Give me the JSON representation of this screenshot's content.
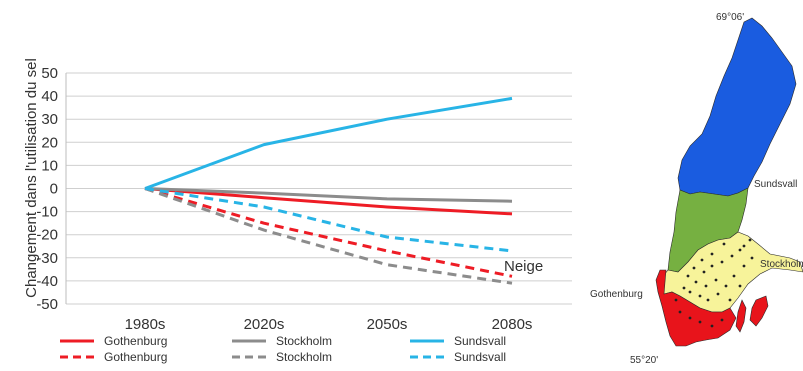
{
  "chart_data": {
    "type": "line",
    "title": "",
    "xlabel": "",
    "ylabel": "Changement dans l'utilisation du sel",
    "categories": [
      "1980s",
      "2020s",
      "2050s",
      "2080s"
    ],
    "ylim": [
      -50,
      50
    ],
    "yticks": [
      50,
      40,
      30,
      20,
      10,
      0,
      -10,
      -20,
      -30,
      -40,
      -50
    ],
    "grid": true,
    "series": [
      {
        "name": "Gothenburg",
        "values": [
          0,
          -4,
          -8,
          -11
        ],
        "color": "#ee1c25",
        "dash": "solid"
      },
      {
        "name": "Stockholm",
        "values": [
          0,
          -2,
          -4.5,
          -5.5
        ],
        "color": "#8c8c8c",
        "dash": "solid"
      },
      {
        "name": "Sundsvall",
        "values": [
          0,
          19,
          30,
          39
        ],
        "color": "#28b4e6",
        "dash": "solid"
      },
      {
        "name": "Gothenburg",
        "values": [
          0,
          -15,
          -27,
          -38
        ],
        "color": "#ee1c25",
        "dash": "dashed"
      },
      {
        "name": "Stockholm",
        "values": [
          0,
          -18,
          -33,
          -41
        ],
        "color": "#8c8c8c",
        "dash": "dashed"
      },
      {
        "name": "Sundsvall",
        "values": [
          0,
          -8,
          -21,
          -27
        ],
        "color": "#28b4e6",
        "dash": "dashed"
      }
    ],
    "annotations": [
      {
        "text": "Neige"
      }
    ],
    "legend": "bottom"
  },
  "map": {
    "lat_top": "69°06'",
    "lat_bottom": "55°20'",
    "labels": {
      "north": "Sundsvall",
      "east": "Stockholm",
      "west": "Gothenburg"
    },
    "colors": {
      "north": "#1a5ce0",
      "central": "#76b041",
      "south": "#f7f39a",
      "southern_tip": "#e8141b"
    }
  }
}
